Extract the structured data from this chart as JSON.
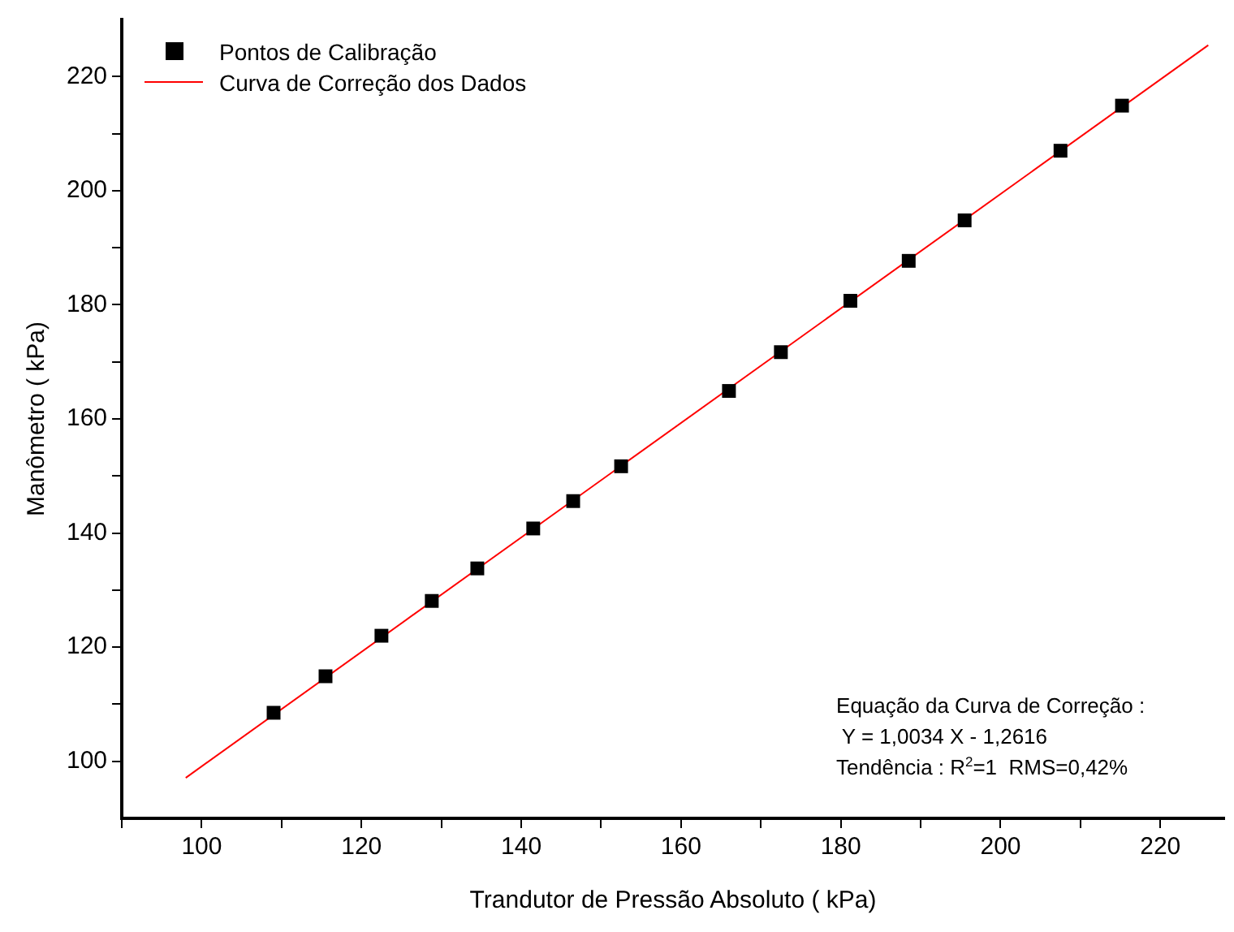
{
  "chart_data": {
    "type": "scatter",
    "xlabel": "Trandutor de Pressão Absoluto ( kPa)",
    "ylabel": "Manômetro ( kPa)",
    "x": [
      109,
      115.5,
      122.5,
      128.8,
      134.5,
      141.5,
      146.5,
      152.5,
      166,
      172.5,
      181.2,
      188.5,
      195.5,
      207.5,
      215.2
    ],
    "series": [
      {
        "name": "Pontos de Calibração",
        "color": "#000000",
        "marker": "square",
        "values": [
          108.5,
          114.9,
          122,
          128.1,
          133.8,
          140.8,
          145.6,
          151.7,
          164.9,
          171.7,
          180.7,
          187.7,
          194.8,
          207,
          214.9
        ]
      },
      {
        "name": "Curva de Correção dos Dados",
        "type": "line",
        "color": "#ff0000",
        "marker": "none",
        "x": [
          98,
          226
        ],
        "values": [
          97.1,
          225.5
        ]
      }
    ],
    "xlim": [
      90,
      228
    ],
    "ylim": [
      90,
      230
    ],
    "xticks": [
      {
        "value": 90,
        "label": null
      },
      100,
      {
        "value": 110,
        "label": null
      },
      120,
      {
        "value": 130,
        "label": null
      },
      140,
      {
        "value": 150,
        "label": null
      },
      160,
      {
        "value": 170,
        "label": null
      },
      180,
      {
        "value": 190,
        "label": null
      },
      200,
      {
        "value": 210,
        "label": null
      },
      220
    ],
    "yticks": [
      100,
      {
        "value": 110,
        "label": null
      },
      120,
      {
        "value": 130,
        "label": null
      },
      140,
      {
        "value": 150,
        "label": null
      },
      160,
      {
        "value": 170,
        "label": null
      },
      180,
      {
        "value": 190,
        "label": null
      },
      200,
      {
        "value": 210,
        "label": null
      },
      220
    ],
    "annotations": [
      "Equação da Curva de Correção :",
      " Y = 1,0034 X - 1,2616",
      "Tendência : R$^{2}$=1  RMS=0,42%"
    ],
    "legend": "top left",
    "grid": false
  }
}
